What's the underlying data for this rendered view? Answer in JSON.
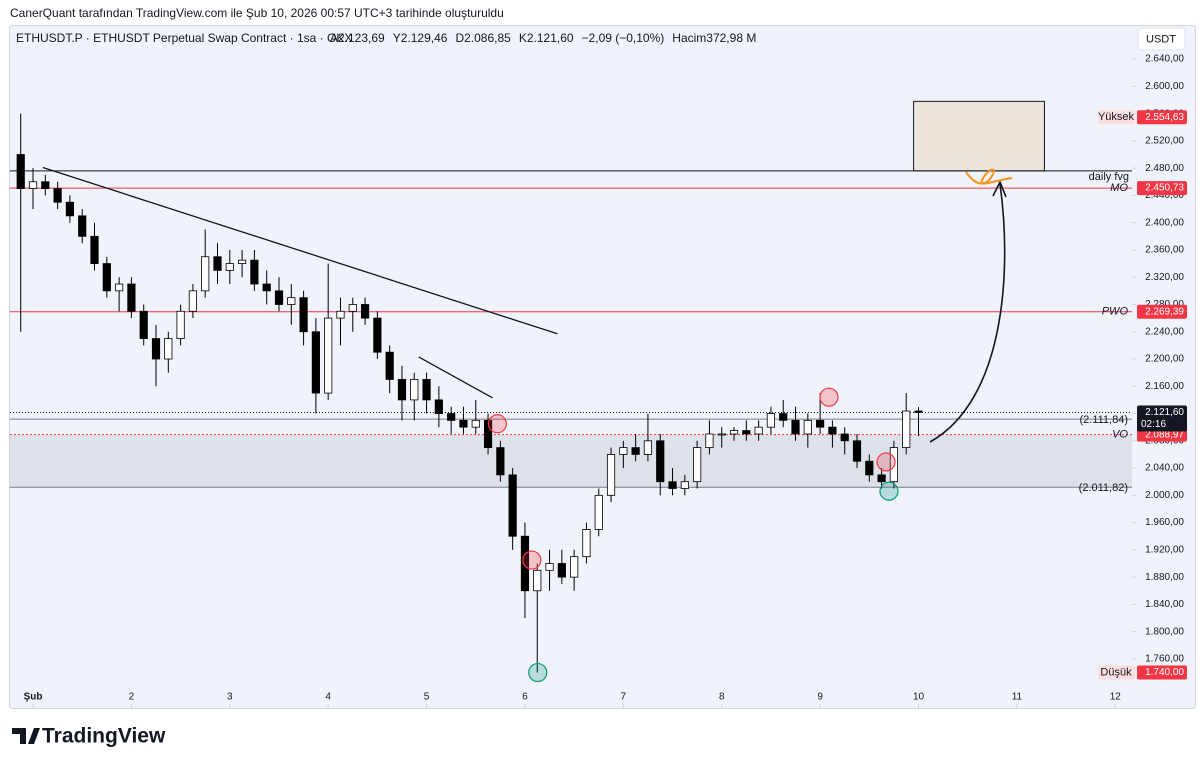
{
  "header": {
    "attribution": "CanerQuant tarafından TradingView.com ile Şub 10, 2026 00:57 UTC+3 tarihinde oluşturuldu"
  },
  "chart_data": {
    "type": "candlestick",
    "symbol": "ETHUSDT.P · ETHUSDT Perpetual Swap Contract · 1sa · OKX",
    "ohlc_legend": [
      "A2.123,69",
      "Y2.129,46",
      "D2.086,85",
      "K2.121,60",
      "−2,09 (−0,10%)",
      "Hacim372,98 M"
    ],
    "currency": "USDT",
    "x": [
      0.875,
      1.0,
      1.125,
      1.25,
      1.375,
      1.5,
      1.625,
      1.75,
      1.875,
      2.0,
      2.125,
      2.25,
      2.375,
      2.5,
      2.625,
      2.75,
      2.875,
      3.0,
      3.125,
      3.25,
      3.375,
      3.5,
      3.625,
      3.75,
      3.875,
      4.0,
      4.125,
      4.25,
      4.375,
      4.5,
      4.625,
      4.75,
      4.875,
      5.0,
      5.125,
      5.25,
      5.375,
      5.5,
      5.625,
      5.75,
      5.875,
      6.0,
      6.125,
      6.25,
      6.375,
      6.5,
      6.625,
      6.75,
      6.875,
      7.0,
      7.125,
      7.25,
      7.375,
      7.5,
      7.625,
      7.75,
      7.875,
      8.0,
      8.125,
      8.25,
      8.375,
      8.5,
      8.625,
      8.75,
      8.875,
      9.0,
      9.125,
      9.25,
      9.375,
      9.5,
      9.625,
      9.75,
      9.875,
      10.0
    ],
    "open": [
      2500,
      2450,
      2460,
      2450,
      2430,
      2410,
      2380,
      2340,
      2300,
      2310,
      2270,
      2230,
      2200,
      2230,
      2270,
      2300,
      2350,
      2330,
      2340,
      2345,
      2310,
      2300,
      2280,
      2290,
      2240,
      2150,
      2260,
      2270,
      2280,
      2260,
      2210,
      2170,
      2140,
      2170,
      2140,
      2120,
      2110,
      2100,
      2110,
      2070,
      2030,
      1940,
      1860,
      1890,
      1900,
      1880,
      1910,
      1950,
      2000,
      2060,
      2070,
      2060,
      2080,
      2020,
      2010,
      2020,
      2070,
      2090,
      2090,
      2095,
      2090,
      2100,
      2120,
      2110,
      2090,
      2110,
      2100,
      2090,
      2080,
      2050,
      2030,
      2020,
      2070,
      2123.69
    ],
    "high": [
      2560,
      2480,
      2470,
      2460,
      2440,
      2420,
      2400,
      2350,
      2320,
      2320,
      2280,
      2250,
      2240,
      2280,
      2310,
      2390,
      2370,
      2360,
      2360,
      2360,
      2330,
      2320,
      2310,
      2300,
      2260,
      2340,
      2290,
      2290,
      2290,
      2270,
      2220,
      2190,
      2180,
      2180,
      2160,
      2130,
      2130,
      2140,
      2120,
      2080,
      2040,
      1960,
      1900,
      1920,
      1920,
      1920,
      1960,
      2010,
      2070,
      2080,
      2090,
      2120,
      2090,
      2040,
      2030,
      2080,
      2110,
      2100,
      2100,
      2110,
      2110,
      2130,
      2140,
      2130,
      2120,
      2150,
      2110,
      2100,
      2090,
      2060,
      2040,
      2080,
      2150,
      2129.46
    ],
    "low": [
      2240,
      2420,
      2440,
      2420,
      2400,
      2370,
      2330,
      2290,
      2270,
      2260,
      2220,
      2160,
      2180,
      2220,
      2260,
      2290,
      2310,
      2310,
      2320,
      2300,
      2280,
      2270,
      2250,
      2220,
      2120,
      2140,
      2220,
      2240,
      2250,
      2200,
      2150,
      2110,
      2110,
      2120,
      2100,
      2090,
      2090,
      2090,
      2060,
      2020,
      1920,
      1820,
      1740,
      1860,
      1870,
      1860,
      1900,
      1940,
      1990,
      2040,
      2050,
      2050,
      2000,
      2000,
      2000,
      2010,
      2060,
      2070,
      2080,
      2080,
      2080,
      2090,
      2100,
      2080,
      2070,
      2090,
      2070,
      2060,
      2040,
      2020,
      2010,
      2010,
      2060,
      2086.85
    ],
    "close": [
      2450,
      2460,
      2450,
      2430,
      2410,
      2380,
      2340,
      2300,
      2310,
      2270,
      2230,
      2200,
      2230,
      2270,
      2300,
      2350,
      2330,
      2340,
      2345,
      2310,
      2300,
      2280,
      2290,
      2240,
      2150,
      2260,
      2270,
      2280,
      2260,
      2210,
      2170,
      2140,
      2170,
      2140,
      2120,
      2110,
      2100,
      2110,
      2070,
      2030,
      1940,
      1860,
      1890,
      1900,
      1880,
      1910,
      1950,
      2000,
      2060,
      2070,
      2060,
      2080,
      2020,
      2010,
      2020,
      2070,
      2090,
      2090,
      2095,
      2090,
      2100,
      2120,
      2110,
      2090,
      2110,
      2100,
      2090,
      2080,
      2050,
      2030,
      2020,
      2070,
      2123.69,
      2121.6
    ],
    "xlim": [
      0.766,
      12.17
    ],
    "xticks": [
      {
        "value": 1,
        "label": "Şub"
      },
      2,
      3,
      4,
      5,
      6,
      7,
      8,
      9,
      10,
      11,
      12
    ],
    "ylim": [
      1688,
      2690
    ],
    "yticks": [
      {
        "value": 1760,
        "label": "1.760,00"
      },
      {
        "value": 1800,
        "label": "1.800,00"
      },
      {
        "value": 1840,
        "label": "1.840,00"
      },
      {
        "value": 1880,
        "label": "1.880,00"
      },
      {
        "value": 1920,
        "label": "1.920,00"
      },
      {
        "value": 1960,
        "label": "1.960,00"
      },
      {
        "value": 2000,
        "label": "2.000,00"
      },
      {
        "value": 2040,
        "label": "2.040,00"
      },
      {
        "value": 2080,
        "label": "2.080,00"
      },
      {
        "value": 2120,
        "label": "2.120,00"
      },
      {
        "value": 2160,
        "label": "2.160,00"
      },
      {
        "value": 2200,
        "label": "2.200,00"
      },
      {
        "value": 2240,
        "label": "2.240,00"
      },
      {
        "value": 2280,
        "label": "2.280,00"
      },
      {
        "value": 2320,
        "label": "2.320,00"
      },
      {
        "value": 2360,
        "label": "2.360,00"
      },
      {
        "value": 2400,
        "label": "2.400,00"
      },
      {
        "value": 2440,
        "label": "2.440,00"
      },
      {
        "value": 2480,
        "label": "2.480,00"
      },
      {
        "value": 2520,
        "label": "2.520,00"
      },
      {
        "value": 2560,
        "label": "2.560,00"
      },
      {
        "value": 2600,
        "label": "2.600,00"
      },
      {
        "value": 2640,
        "label": "2.640,00"
      }
    ],
    "up_color": "#ffffff",
    "down_color": "#000000",
    "wick_color": "#000000",
    "zone": {
      "y": [
        2011.82,
        2088.97
      ],
      "color": "#dde1ea"
    },
    "levels": [
      {
        "name": "Yüksek",
        "value": 2554.63,
        "value_label": "2.554,63",
        "color": "#f23645",
        "line": false,
        "label_position": "axis"
      },
      {
        "name": "MO",
        "value": 2450.73,
        "value_label": "2.450,73",
        "color": "#f23645",
        "line": true,
        "label_position": "axis"
      },
      {
        "name": "PWO",
        "value": 2269.39,
        "value_label": "2.269,39",
        "color": "#f23645",
        "line": true,
        "label_position": "axis"
      },
      {
        "value": 2111.84,
        "value_label": "(2.111,84)",
        "color": "#787b86",
        "line": true,
        "label_position": "chart"
      },
      {
        "name": "VO",
        "value": 2088.97,
        "value_label": "2.088,97",
        "color": "#f23645",
        "line": true,
        "dashed": true,
        "label_position": "axis"
      },
      {
        "value": 2011.82,
        "value_label": "(2.011,82)",
        "color": "#787b86",
        "line": true,
        "label_position": "chart"
      },
      {
        "name": "Düşük",
        "value": 1740,
        "value_label": "1.740,00",
        "color": "#f23645",
        "line": false,
        "label_position": "axis"
      }
    ],
    "last_price": {
      "value": 2121.6,
      "value_label": "2.121,60",
      "countdown": "02:16"
    },
    "fvg": {
      "label": "daily fvg",
      "x": [
        9.95,
        11.28
      ],
      "y": [
        2476,
        2578
      ]
    },
    "trendlines": [
      {
        "x": [
          1.1,
          6.33
        ],
        "y": [
          2481,
          2237
        ]
      },
      {
        "x": [
          4.92,
          5.67
        ],
        "y": [
          2203,
          2143
        ]
      }
    ],
    "markers": [
      {
        "x": 5.72,
        "y": 2105,
        "color": "#f23645"
      },
      {
        "x": 6.07,
        "y": 1905,
        "color": "#f23645"
      },
      {
        "x": 9.09,
        "y": 2144,
        "color": "#f23645"
      },
      {
        "x": 9.67,
        "y": 2049,
        "color": "#f23645"
      },
      {
        "x": 6.13,
        "y": 1740,
        "color": "#089981"
      },
      {
        "x": 9.7,
        "y": 2006,
        "color": "#089981"
      }
    ]
  },
  "footer": {
    "logo": "TradingView"
  }
}
